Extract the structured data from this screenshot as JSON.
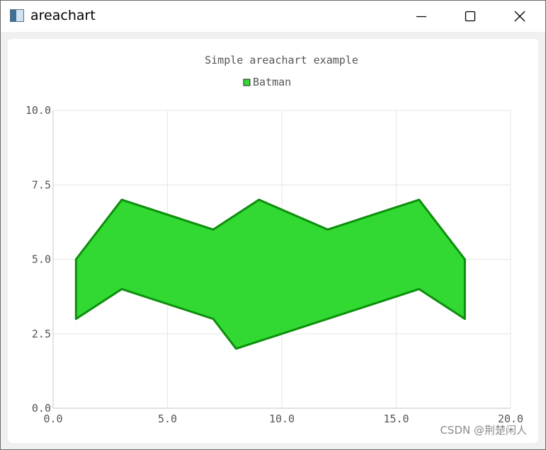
{
  "window": {
    "title": "areachart",
    "icons": {
      "app": "app-window-icon",
      "minimize": "minimize-icon",
      "maximize": "maximize-icon",
      "close": "close-icon"
    }
  },
  "watermark": "CSDN @荆楚闲人",
  "colors": {
    "fill": "#32d932",
    "stroke": "#0d8f0d",
    "grid": "#e6e6e6",
    "axis": "#c8c8c8",
    "text": "#555555"
  },
  "chart_data": {
    "type": "area",
    "title": "Simple areachart example",
    "legend": {
      "placement": "top-center",
      "entries": [
        "Batman"
      ]
    },
    "xlim": [
      0,
      20
    ],
    "ylim": [
      0,
      10
    ],
    "xticks": [
      "0.0",
      "5.0",
      "10.0",
      "15.0",
      "20.0"
    ],
    "yticks": [
      "0.0",
      "2.5",
      "5.0",
      "7.5",
      "10.0"
    ],
    "grid": true,
    "series": [
      {
        "name": "Batman",
        "upper": [
          [
            1,
            5
          ],
          [
            3,
            7
          ],
          [
            7,
            6
          ],
          [
            9,
            7
          ],
          [
            12,
            6
          ],
          [
            16,
            7
          ],
          [
            18,
            5
          ]
        ],
        "lower": [
          [
            1,
            3
          ],
          [
            3,
            4
          ],
          [
            7,
            3
          ],
          [
            8,
            2
          ],
          [
            16,
            4
          ],
          [
            18,
            3
          ]
        ]
      }
    ]
  }
}
